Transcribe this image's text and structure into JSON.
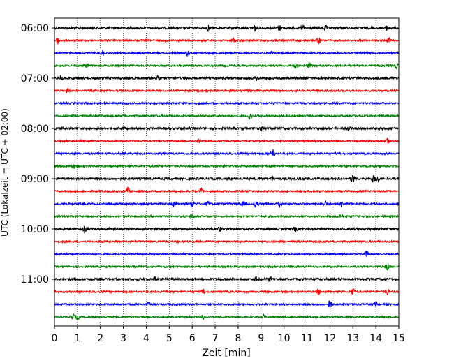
{
  "chart_data": {
    "type": "line",
    "title": "",
    "xlabel": "Zeit  [min]",
    "ylabel": "UTC (Lokalzeit = UTC + 02:00)",
    "xlim": [
      0,
      15
    ],
    "x_ticks": [
      0,
      1,
      2,
      3,
      4,
      5,
      6,
      7,
      8,
      9,
      10,
      11,
      12,
      13,
      14,
      15
    ],
    "y_tick_labels": [
      "06:00",
      "07:00",
      "08:00",
      "09:00",
      "10:00",
      "11:00"
    ],
    "grid": "vertical-dotted",
    "trace_interval_minutes": 15,
    "start_time": "06:00",
    "trace_colors": [
      "#000000",
      "#ff0000",
      "#0000ff",
      "#008000"
    ],
    "traces": [
      {
        "time": "06:00",
        "events": [
          [
            6.7,
            4
          ],
          [
            8.7,
            6
          ],
          [
            9.8,
            4
          ],
          [
            10.8,
            4
          ],
          [
            11.8,
            3
          ],
          [
            14.5,
            4
          ]
        ]
      },
      {
        "time": "06:15",
        "events": [
          [
            0.15,
            5
          ],
          [
            7.8,
            4
          ],
          [
            11.5,
            5
          ],
          [
            14.6,
            4
          ]
        ]
      },
      {
        "time": "06:30",
        "events": [
          [
            2.1,
            4
          ],
          [
            5.8,
            4
          ],
          [
            9.5,
            3
          ]
        ]
      },
      {
        "time": "06:45",
        "events": [
          [
            1.4,
            3
          ],
          [
            10.5,
            4
          ],
          [
            11.1,
            4
          ],
          [
            14.9,
            4
          ]
        ]
      },
      {
        "time": "07:00",
        "events": [
          [
            0.3,
            5
          ],
          [
            4.5,
            3
          ],
          [
            8.8,
            3
          ]
        ]
      },
      {
        "time": "07:15",
        "events": [
          [
            0.6,
            4
          ]
        ]
      },
      {
        "time": "07:30",
        "events": []
      },
      {
        "time": "07:45",
        "events": [
          [
            8.5,
            4
          ]
        ]
      },
      {
        "time": "08:00",
        "events": [
          [
            3.0,
            3
          ],
          [
            9.0,
            4
          ],
          [
            12.8,
            3
          ]
        ]
      },
      {
        "time": "08:15",
        "events": [
          [
            6.3,
            3
          ],
          [
            14.5,
            5
          ]
        ]
      },
      {
        "time": "08:30",
        "events": [
          [
            9.5,
            7
          ]
        ]
      },
      {
        "time": "08:45",
        "events": [
          [
            0.8,
            3
          ]
        ]
      },
      {
        "time": "09:00",
        "events": [
          [
            13.0,
            7
          ],
          [
            13.9,
            6
          ],
          [
            14.1,
            5
          ],
          [
            9.5,
            3
          ]
        ]
      },
      {
        "time": "09:15",
        "events": [
          [
            3.2,
            5
          ],
          [
            6.4,
            4
          ]
        ]
      },
      {
        "time": "09:30",
        "events": [
          [
            5.2,
            4
          ],
          [
            6.0,
            5
          ],
          [
            6.7,
            4
          ],
          [
            8.2,
            4
          ],
          [
            8.8,
            6
          ],
          [
            9.8,
            5
          ],
          [
            11.8,
            4
          ],
          [
            12.5,
            4
          ]
        ]
      },
      {
        "time": "09:45",
        "events": [
          [
            6.0,
            3
          ],
          [
            12.5,
            3
          ]
        ]
      },
      {
        "time": "10:00",
        "events": [
          [
            1.3,
            4
          ],
          [
            7.2,
            3
          ],
          [
            10.5,
            3
          ]
        ]
      },
      {
        "time": "10:15",
        "events": []
      },
      {
        "time": "10:30",
        "events": [
          [
            13.6,
            4
          ]
        ]
      },
      {
        "time": "10:45",
        "events": [
          [
            14.5,
            5
          ]
        ]
      },
      {
        "time": "11:00",
        "events": [
          [
            4.4,
            4
          ],
          [
            8.8,
            3
          ],
          [
            9.4,
            3
          ]
        ]
      },
      {
        "time": "11:15",
        "events": [
          [
            6.5,
            3
          ],
          [
            11.5,
            4
          ],
          [
            13.0,
            6
          ],
          [
            14.5,
            4
          ]
        ]
      },
      {
        "time": "11:30",
        "events": [
          [
            4.1,
            3
          ],
          [
            12.0,
            7
          ],
          [
            14.0,
            3
          ]
        ]
      },
      {
        "time": "11:45",
        "events": [
          [
            0.8,
            4
          ],
          [
            1.0,
            4
          ],
          [
            6.5,
            3
          ],
          [
            9.1,
            3
          ]
        ]
      }
    ]
  }
}
